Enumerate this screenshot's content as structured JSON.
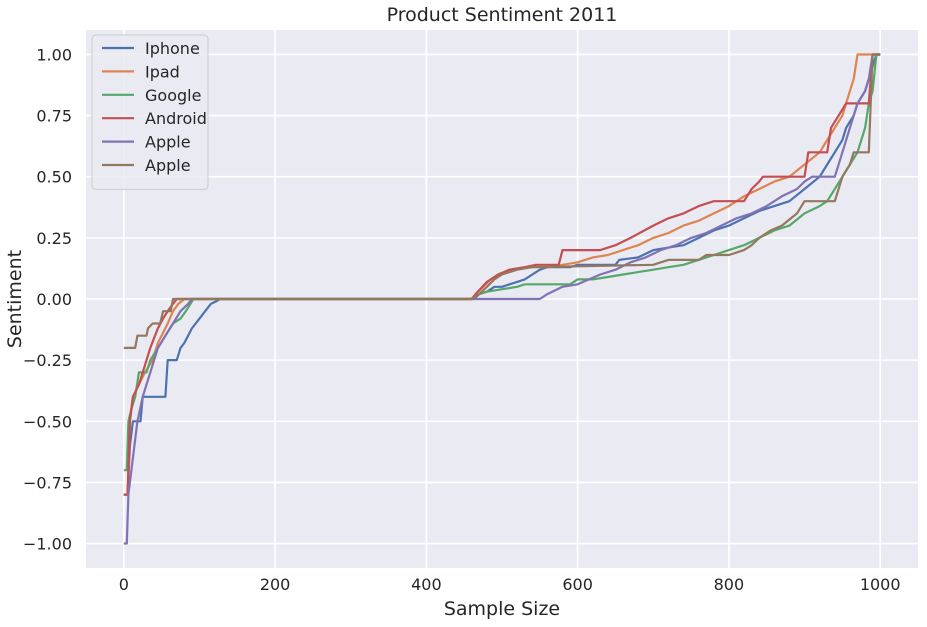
{
  "chart_data": {
    "type": "line",
    "title": "Product Sentiment 2011",
    "xlabel": "Sample Size",
    "ylabel": "Sentiment",
    "xlim": [
      -50,
      1050
    ],
    "ylim": [
      -1.1,
      1.1
    ],
    "xticks": [
      0,
      200,
      400,
      600,
      800,
      1000
    ],
    "xtick_labels": [
      "0",
      "200",
      "400",
      "600",
      "800",
      "1000"
    ],
    "yticks": [
      -1.0,
      -0.75,
      -0.5,
      -0.25,
      0.0,
      0.25,
      0.5,
      0.75,
      1.0
    ],
    "ytick_labels": [
      "−1.00",
      "−0.75",
      "−0.50",
      "−0.25",
      "0.00",
      "0.25",
      "0.50",
      "0.75",
      "1.00"
    ],
    "grid": true,
    "legend_position": "top-left",
    "background": "#eaeaf2",
    "series": [
      {
        "name": "Iphone",
        "color": "#4c72b0",
        "points": [
          [
            0,
            -0.8
          ],
          [
            5,
            -0.8
          ],
          [
            8,
            -0.6
          ],
          [
            12,
            -0.5
          ],
          [
            22,
            -0.5
          ],
          [
            25,
            -0.4
          ],
          [
            55,
            -0.4
          ],
          [
            58,
            -0.25
          ],
          [
            70,
            -0.25
          ],
          [
            75,
            -0.2
          ],
          [
            80,
            -0.18
          ],
          [
            85,
            -0.15
          ],
          [
            90,
            -0.12
          ],
          [
            95,
            -0.1
          ],
          [
            100,
            -0.08
          ],
          [
            105,
            -0.06
          ],
          [
            110,
            -0.04
          ],
          [
            115,
            -0.02
          ],
          [
            122,
            -0.01
          ],
          [
            127,
            0.0
          ],
          [
            463,
            0.0
          ],
          [
            470,
            0.02
          ],
          [
            480,
            0.03
          ],
          [
            490,
            0.05
          ],
          [
            500,
            0.05
          ],
          [
            510,
            0.06
          ],
          [
            520,
            0.07
          ],
          [
            530,
            0.08
          ],
          [
            540,
            0.1
          ],
          [
            550,
            0.12
          ],
          [
            560,
            0.13
          ],
          [
            590,
            0.13
          ],
          [
            600,
            0.14
          ],
          [
            650,
            0.14
          ],
          [
            655,
            0.16
          ],
          [
            680,
            0.17
          ],
          [
            700,
            0.2
          ],
          [
            720,
            0.21
          ],
          [
            740,
            0.22
          ],
          [
            760,
            0.25
          ],
          [
            780,
            0.28
          ],
          [
            800,
            0.3
          ],
          [
            820,
            0.33
          ],
          [
            840,
            0.36
          ],
          [
            860,
            0.38
          ],
          [
            880,
            0.4
          ],
          [
            900,
            0.45
          ],
          [
            920,
            0.5
          ],
          [
            930,
            0.55
          ],
          [
            940,
            0.6
          ],
          [
            950,
            0.65
          ],
          [
            955,
            0.7
          ],
          [
            965,
            0.75
          ],
          [
            970,
            0.8
          ],
          [
            980,
            0.85
          ],
          [
            985,
            0.9
          ],
          [
            990,
            0.95
          ],
          [
            995,
            1.0
          ],
          [
            1000,
            1.0
          ]
        ]
      },
      {
        "name": "Ipad",
        "color": "#dd8452",
        "points": [
          [
            0,
            -0.8
          ],
          [
            5,
            -0.8
          ],
          [
            8,
            -0.5
          ],
          [
            12,
            -0.4
          ],
          [
            20,
            -0.35
          ],
          [
            28,
            -0.3
          ],
          [
            38,
            -0.25
          ],
          [
            45,
            -0.18
          ],
          [
            50,
            -0.15
          ],
          [
            58,
            -0.1
          ],
          [
            65,
            -0.05
          ],
          [
            72,
            -0.02
          ],
          [
            80,
            0.0
          ],
          [
            460,
            0.0
          ],
          [
            465,
            0.02
          ],
          [
            475,
            0.05
          ],
          [
            485,
            0.08
          ],
          [
            495,
            0.1
          ],
          [
            510,
            0.12
          ],
          [
            530,
            0.13
          ],
          [
            560,
            0.13
          ],
          [
            580,
            0.14
          ],
          [
            600,
            0.15
          ],
          [
            620,
            0.17
          ],
          [
            640,
            0.18
          ],
          [
            660,
            0.2
          ],
          [
            680,
            0.22
          ],
          [
            700,
            0.25
          ],
          [
            720,
            0.27
          ],
          [
            740,
            0.3
          ],
          [
            760,
            0.32
          ],
          [
            780,
            0.35
          ],
          [
            800,
            0.38
          ],
          [
            820,
            0.42
          ],
          [
            840,
            0.45
          ],
          [
            860,
            0.48
          ],
          [
            880,
            0.5
          ],
          [
            900,
            0.55
          ],
          [
            920,
            0.6
          ],
          [
            930,
            0.65
          ],
          [
            940,
            0.7
          ],
          [
            950,
            0.75
          ],
          [
            955,
            0.8
          ],
          [
            960,
            0.85
          ],
          [
            965,
            0.9
          ],
          [
            970,
            1.0
          ],
          [
            1000,
            1.0
          ]
        ]
      },
      {
        "name": "Google",
        "color": "#55a868",
        "points": [
          [
            0,
            -0.7
          ],
          [
            4,
            -0.7
          ],
          [
            6,
            -0.5
          ],
          [
            10,
            -0.45
          ],
          [
            15,
            -0.4
          ],
          [
            20,
            -0.3
          ],
          [
            30,
            -0.3
          ],
          [
            35,
            -0.25
          ],
          [
            45,
            -0.2
          ],
          [
            55,
            -0.15
          ],
          [
            65,
            -0.1
          ],
          [
            75,
            -0.08
          ],
          [
            82,
            -0.05
          ],
          [
            88,
            -0.02
          ],
          [
            92,
            0.0
          ],
          [
            460,
            0.0
          ],
          [
            470,
            0.02
          ],
          [
            480,
            0.03
          ],
          [
            500,
            0.04
          ],
          [
            520,
            0.05
          ],
          [
            530,
            0.06
          ],
          [
            590,
            0.06
          ],
          [
            600,
            0.08
          ],
          [
            620,
            0.08
          ],
          [
            640,
            0.09
          ],
          [
            660,
            0.1
          ],
          [
            680,
            0.11
          ],
          [
            700,
            0.12
          ],
          [
            720,
            0.13
          ],
          [
            740,
            0.14
          ],
          [
            760,
            0.16
          ],
          [
            780,
            0.18
          ],
          [
            800,
            0.2
          ],
          [
            820,
            0.22
          ],
          [
            840,
            0.25
          ],
          [
            860,
            0.28
          ],
          [
            880,
            0.3
          ],
          [
            900,
            0.35
          ],
          [
            920,
            0.38
          ],
          [
            930,
            0.4
          ],
          [
            940,
            0.45
          ],
          [
            950,
            0.5
          ],
          [
            960,
            0.55
          ],
          [
            970,
            0.6
          ],
          [
            980,
            0.7
          ],
          [
            985,
            0.8
          ],
          [
            990,
            0.85
          ],
          [
            995,
            1.0
          ],
          [
            1000,
            1.0
          ]
        ]
      },
      {
        "name": "Android",
        "color": "#c44e52",
        "points": [
          [
            0,
            -0.8
          ],
          [
            5,
            -0.8
          ],
          [
            8,
            -0.5
          ],
          [
            12,
            -0.4
          ],
          [
            20,
            -0.35
          ],
          [
            25,
            -0.3
          ],
          [
            35,
            -0.2
          ],
          [
            45,
            -0.12
          ],
          [
            52,
            -0.08
          ],
          [
            58,
            -0.05
          ],
          [
            65,
            -0.02
          ],
          [
            70,
            0.0
          ],
          [
            460,
            0.0
          ],
          [
            468,
            0.03
          ],
          [
            480,
            0.07
          ],
          [
            495,
            0.1
          ],
          [
            510,
            0.12
          ],
          [
            530,
            0.13
          ],
          [
            545,
            0.14
          ],
          [
            575,
            0.14
          ],
          [
            580,
            0.2
          ],
          [
            630,
            0.2
          ],
          [
            650,
            0.22
          ],
          [
            670,
            0.25
          ],
          [
            700,
            0.3
          ],
          [
            720,
            0.33
          ],
          [
            740,
            0.35
          ],
          [
            760,
            0.38
          ],
          [
            780,
            0.4
          ],
          [
            820,
            0.4
          ],
          [
            830,
            0.45
          ],
          [
            840,
            0.48
          ],
          [
            845,
            0.5
          ],
          [
            900,
            0.5
          ],
          [
            905,
            0.6
          ],
          [
            930,
            0.6
          ],
          [
            935,
            0.7
          ],
          [
            945,
            0.75
          ],
          [
            955,
            0.8
          ],
          [
            985,
            0.8
          ],
          [
            990,
            1.0
          ],
          [
            1000,
            1.0
          ]
        ]
      },
      {
        "name": "Apple",
        "color": "#8172b3",
        "points": [
          [
            0,
            -1.0
          ],
          [
            4,
            -1.0
          ],
          [
            6,
            -0.8
          ],
          [
            8,
            -0.75
          ],
          [
            12,
            -0.65
          ],
          [
            18,
            -0.5
          ],
          [
            25,
            -0.4
          ],
          [
            35,
            -0.3
          ],
          [
            45,
            -0.2
          ],
          [
            55,
            -0.15
          ],
          [
            65,
            -0.1
          ],
          [
            75,
            -0.05
          ],
          [
            85,
            -0.02
          ],
          [
            90,
            0.0
          ],
          [
            460,
            0.0
          ],
          [
            550,
            0.0
          ],
          [
            560,
            0.02
          ],
          [
            580,
            0.05
          ],
          [
            600,
            0.06
          ],
          [
            615,
            0.08
          ],
          [
            630,
            0.1
          ],
          [
            650,
            0.12
          ],
          [
            670,
            0.15
          ],
          [
            690,
            0.17
          ],
          [
            710,
            0.2
          ],
          [
            730,
            0.22
          ],
          [
            750,
            0.25
          ],
          [
            770,
            0.27
          ],
          [
            790,
            0.3
          ],
          [
            810,
            0.33
          ],
          [
            830,
            0.35
          ],
          [
            850,
            0.38
          ],
          [
            870,
            0.42
          ],
          [
            890,
            0.45
          ],
          [
            900,
            0.48
          ],
          [
            910,
            0.5
          ],
          [
            940,
            0.5
          ],
          [
            950,
            0.6
          ],
          [
            960,
            0.7
          ],
          [
            970,
            0.8
          ],
          [
            980,
            0.85
          ],
          [
            985,
            0.9
          ],
          [
            990,
            1.0
          ],
          [
            1000,
            1.0
          ]
        ]
      },
      {
        "name": "Apple",
        "color": "#937860",
        "points": [
          [
            0,
            -0.2
          ],
          [
            15,
            -0.2
          ],
          [
            18,
            -0.15
          ],
          [
            30,
            -0.15
          ],
          [
            32,
            -0.12
          ],
          [
            38,
            -0.1
          ],
          [
            48,
            -0.1
          ],
          [
            52,
            -0.05
          ],
          [
            62,
            -0.05
          ],
          [
            65,
            0.0
          ],
          [
            460,
            0.0
          ],
          [
            470,
            0.02
          ],
          [
            480,
            0.05
          ],
          [
            490,
            0.08
          ],
          [
            500,
            0.1
          ],
          [
            520,
            0.12
          ],
          [
            540,
            0.13
          ],
          [
            700,
            0.14
          ],
          [
            710,
            0.15
          ],
          [
            720,
            0.16
          ],
          [
            760,
            0.16
          ],
          [
            770,
            0.18
          ],
          [
            800,
            0.18
          ],
          [
            820,
            0.2
          ],
          [
            830,
            0.22
          ],
          [
            840,
            0.25
          ],
          [
            855,
            0.28
          ],
          [
            870,
            0.3
          ],
          [
            890,
            0.35
          ],
          [
            900,
            0.4
          ],
          [
            940,
            0.4
          ],
          [
            950,
            0.5
          ],
          [
            960,
            0.55
          ],
          [
            965,
            0.6
          ],
          [
            985,
            0.6
          ],
          [
            990,
            1.0
          ],
          [
            1000,
            1.0
          ]
        ]
      }
    ]
  }
}
